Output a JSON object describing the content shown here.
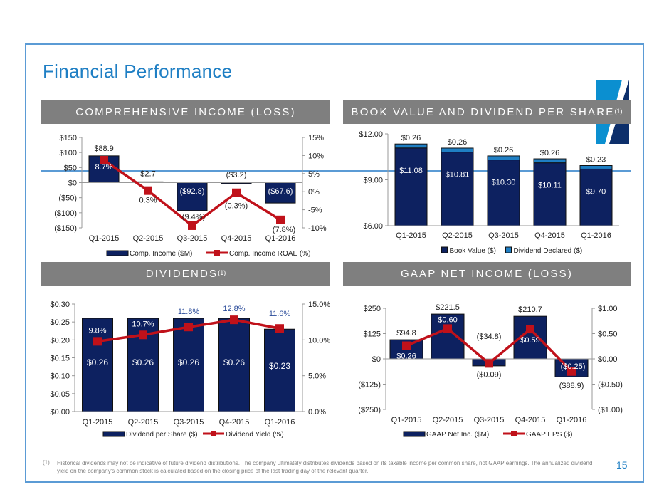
{
  "slide": {
    "title": "Financial Performance",
    "page_number": "15",
    "footnote_marker": "(1)",
    "footnote": "Historical dividends may not be indicative of future dividend distributions.  The company ultimately distributes dividends based on its taxable income per common share, not GAAP earnings. The annualized dividend yield on the company's common stock is calculated based on the closing price of the last trading day of the relevant quarter.",
    "colors": {
      "navy": "#0d2160",
      "light_blue": "#1f7fc4",
      "red": "#c0111a",
      "banner_gray": "#7f7f7f",
      "frame_blue": "#5b9bd5"
    }
  },
  "banners": {
    "comp_income": {
      "text": "COMPREHENSIVE INCOME (LOSS)",
      "sup": ""
    },
    "book_value": {
      "text": "BOOK VALUE AND DIVIDEND PER SHARE",
      "sup": "(1)"
    },
    "dividends": {
      "text": "DIVIDENDS",
      "sup": "(1)"
    },
    "gaap": {
      "text": "GAAP NET INCOME (LOSS)",
      "sup": ""
    }
  },
  "chart_data": [
    {
      "id": "comp_income",
      "type": "bar",
      "title": "COMPREHENSIVE INCOME (LOSS)",
      "categories": [
        "Q1-2015",
        "Q2-2015",
        "Q3-2015",
        "Q4-2015",
        "Q1-2016"
      ],
      "series": [
        {
          "name": "Comp. Income ($M)",
          "type": "bar",
          "axis": "left",
          "values": [
            88.9,
            2.7,
            -92.8,
            -3.2,
            -67.6
          ],
          "labels": [
            "$88.9",
            "$2.7",
            "($92.8)",
            "($3.2)",
            "($67.6)"
          ]
        },
        {
          "name": "Comp. Income ROAE (%)",
          "type": "line",
          "axis": "right",
          "values": [
            8.7,
            0.3,
            -9.4,
            -0.3,
            -7.8
          ],
          "labels": [
            "8.7%",
            "0.3%",
            "(9.4%)",
            "(0.3%)",
            "(7.8%)"
          ]
        }
      ],
      "left_axis": {
        "range": [
          -150,
          150
        ],
        "ticks": [
          150,
          100,
          50,
          0,
          -50,
          -100,
          -150
        ],
        "tick_labels": [
          "$150",
          "$100",
          "$50",
          "$0",
          "($50)",
          "($100)",
          "($150)"
        ]
      },
      "right_axis": {
        "range": [
          -10,
          15
        ],
        "ticks": [
          15,
          10,
          5,
          0,
          -5,
          -10
        ],
        "tick_labels": [
          "15%",
          "10%",
          "5%",
          "0%",
          "-5%",
          "-10%"
        ]
      },
      "legend": "bottom"
    },
    {
      "id": "book_value",
      "type": "bar",
      "stacked": true,
      "title": "BOOK VALUE AND DIVIDEND PER SHARE",
      "categories": [
        "Q1-2015",
        "Q2-2015",
        "Q3-2015",
        "Q4-2015",
        "Q1-2016"
      ],
      "series": [
        {
          "name": "Book Value ($)",
          "values": [
            11.08,
            10.81,
            10.3,
            10.11,
            9.7
          ],
          "labels": [
            "$11.08",
            "$10.81",
            "$10.30",
            "$10.11",
            "$9.70"
          ]
        },
        {
          "name": "Dividend Declared ($)",
          "values": [
            0.26,
            0.26,
            0.26,
            0.26,
            0.23
          ],
          "labels": [
            "$0.26",
            "$0.26",
            "$0.26",
            "$0.26",
            "$0.23"
          ]
        }
      ],
      "left_axis": {
        "range": [
          6,
          12
        ],
        "ticks": [
          12,
          9,
          6
        ],
        "tick_labels": [
          "$12.00",
          "$9.00",
          "$6.00"
        ]
      },
      "legend": "bottom"
    },
    {
      "id": "dividends",
      "type": "bar",
      "title": "DIVIDENDS",
      "categories": [
        "Q1-2015",
        "Q2-2015",
        "Q3-2015",
        "Q4-2015",
        "Q1-2016"
      ],
      "series": [
        {
          "name": "Dividend per Share ($)",
          "type": "bar",
          "axis": "left",
          "values": [
            0.26,
            0.26,
            0.26,
            0.26,
            0.23
          ],
          "labels": [
            "$0.26",
            "$0.26",
            "$0.26",
            "$0.26",
            "$0.23"
          ]
        },
        {
          "name": "Dividend Yield (%)",
          "type": "line",
          "axis": "right",
          "values": [
            9.8,
            10.7,
            11.8,
            12.8,
            11.6
          ],
          "labels": [
            "9.8%",
            "10.7%",
            "11.8%",
            "12.8%",
            "11.6%"
          ]
        }
      ],
      "left_axis": {
        "range": [
          0,
          0.3
        ],
        "ticks": [
          0.3,
          0.25,
          0.2,
          0.15,
          0.1,
          0.05,
          0.0
        ],
        "tick_labels": [
          "$0.30",
          "$0.25",
          "$0.20",
          "$0.15",
          "$0.10",
          "$0.05",
          "$0.00"
        ]
      },
      "right_axis": {
        "range": [
          0,
          15
        ],
        "ticks": [
          15,
          10,
          5,
          0
        ],
        "tick_labels": [
          "15.0%",
          "10.0%",
          "5.0%",
          "0.0%"
        ]
      },
      "legend": "bottom"
    },
    {
      "id": "gaap",
      "type": "bar",
      "title": "GAAP NET INCOME (LOSS)",
      "categories": [
        "Q1-2015",
        "Q2-2015",
        "Q3-2015",
        "Q4-2015",
        "Q1-2016"
      ],
      "series": [
        {
          "name": "GAAP Net Inc. ($M)",
          "type": "bar",
          "axis": "left",
          "values": [
            94.8,
            221.5,
            -34.8,
            210.7,
            -88.9
          ],
          "labels": [
            "$94.8",
            "$221.5",
            "($34.8)",
            "$210.7",
            "($88.9)"
          ]
        },
        {
          "name": "GAAP EPS ($)",
          "type": "line",
          "axis": "right",
          "values": [
            0.26,
            0.6,
            -0.09,
            0.59,
            -0.25
          ],
          "labels": [
            "$0.26",
            "$0.60",
            "($0.09)",
            "$0.59",
            "($0.25)"
          ]
        }
      ],
      "left_axis": {
        "range": [
          -250,
          250
        ],
        "ticks": [
          250,
          125,
          0,
          -125,
          -250
        ],
        "tick_labels": [
          "$250",
          "$125",
          "$0",
          "($125)",
          "($250)"
        ]
      },
      "right_axis": {
        "range": [
          -1,
          1
        ],
        "ticks": [
          1,
          0.5,
          0,
          -0.5,
          -1
        ],
        "tick_labels": [
          "$1.00",
          "$0.50",
          "$0.00",
          "($0.50)",
          "($1.00)"
        ]
      },
      "legend": "bottom"
    }
  ]
}
